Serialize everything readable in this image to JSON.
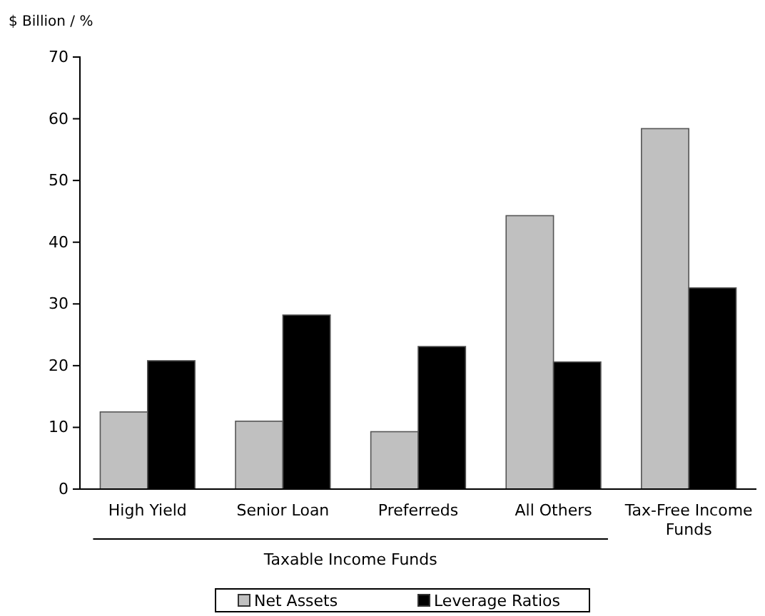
{
  "chart_data": {
    "type": "bar",
    "ylabel": "$ Billion / %",
    "categories": [
      "High Yield",
      "Senior Loan",
      "Preferreds",
      "All Others",
      "Tax-Free Income Funds"
    ],
    "series": [
      {
        "name": "Net Assets",
        "color": "#c0c0c0",
        "values": [
          12.5,
          11,
          9.3,
          44.3,
          58.4
        ]
      },
      {
        "name": "Leverage Ratios",
        "color": "#000000",
        "values": [
          20.8,
          28.2,
          23.1,
          20.6,
          32.6
        ]
      }
    ],
    "ylim": [
      0,
      70
    ],
    "yticks": [
      0,
      10,
      20,
      30,
      40,
      50,
      60,
      70
    ],
    "annotations": [
      "Taxable Income Funds"
    ],
    "legend": "bottom",
    "grid": false
  }
}
